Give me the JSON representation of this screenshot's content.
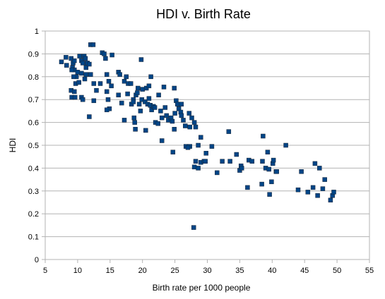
{
  "chart_data": {
    "type": "scatter",
    "title": "HDI v. Birth Rate",
    "xlabel": "Birth rate per 1000 people",
    "ylabel": "HDI",
    "xlim": [
      5,
      55
    ],
    "ylim": [
      0,
      1
    ],
    "xticks": [
      "5",
      "10",
      "15",
      "20",
      "25",
      "30",
      "35",
      "40",
      "45",
      "50",
      "55"
    ],
    "yticks": [
      "0",
      "0.1",
      "0.2",
      "0.3",
      "0.4",
      "0.5",
      "0.6",
      "0.7",
      "0.8",
      "0.9",
      "1"
    ],
    "grid": "horizontal",
    "legend": "none",
    "marker": "square",
    "marker_color": "#004586",
    "points": [
      [
        7.5,
        0.865
      ],
      [
        8.2,
        0.885
      ],
      [
        8.3,
        0.85
      ],
      [
        9.0,
        0.88
      ],
      [
        9.2,
        0.84
      ],
      [
        9.3,
        0.86
      ],
      [
        9.5,
        0.87
      ],
      [
        9.5,
        0.83
      ],
      [
        9.8,
        0.8
      ],
      [
        10.0,
        0.82
      ],
      [
        10.3,
        0.89
      ],
      [
        10.6,
        0.87
      ],
      [
        10.8,
        0.86
      ],
      [
        11.0,
        0.89
      ],
      [
        11.2,
        0.88
      ],
      [
        11.3,
        0.84
      ],
      [
        11.5,
        0.86
      ],
      [
        11.8,
        0.855
      ],
      [
        12.0,
        0.94
      ],
      [
        12.4,
        0.94
      ],
      [
        13.8,
        0.905
      ],
      [
        14.1,
        0.9
      ],
      [
        15.3,
        0.895
      ],
      [
        19.8,
        0.875
      ],
      [
        9.1,
        0.83
      ],
      [
        9.4,
        0.8
      ],
      [
        9.7,
        0.77
      ],
      [
        10.2,
        0.775
      ],
      [
        10.6,
        0.815
      ],
      [
        11.3,
        0.81
      ],
      [
        11.1,
        0.79
      ],
      [
        12.0,
        0.81
      ],
      [
        12.5,
        0.77
      ],
      [
        13.5,
        0.77
      ],
      [
        14.5,
        0.81
      ],
      [
        14.8,
        0.78
      ],
      [
        15.2,
        0.76
      ],
      [
        16.3,
        0.82
      ],
      [
        16.5,
        0.81
      ],
      [
        17.2,
        0.78
      ],
      [
        17.5,
        0.8
      ],
      [
        17.8,
        0.77
      ],
      [
        18.2,
        0.77
      ],
      [
        18.6,
        0.7
      ],
      [
        19.0,
        0.72
      ],
      [
        19.3,
        0.75
      ],
      [
        20.0,
        0.745
      ],
      [
        20.6,
        0.75
      ],
      [
        21.0,
        0.76
      ],
      [
        21.3,
        0.8
      ],
      [
        22.5,
        0.72
      ],
      [
        23.3,
        0.755
      ],
      [
        24.9,
        0.75
      ],
      [
        14.3,
        0.88
      ],
      [
        9.0,
        0.74
      ],
      [
        9.1,
        0.71
      ],
      [
        9.6,
        0.71
      ],
      [
        9.5,
        0.735
      ],
      [
        10.6,
        0.71
      ],
      [
        10.8,
        0.7
      ],
      [
        12.5,
        0.695
      ],
      [
        12.9,
        0.74
      ],
      [
        14.5,
        0.735
      ],
      [
        14.7,
        0.7
      ],
      [
        14.9,
        0.66
      ],
      [
        14.5,
        0.655
      ],
      [
        16.3,
        0.72
      ],
      [
        16.8,
        0.685
      ],
      [
        17.2,
        0.61
      ],
      [
        17.7,
        0.725
      ],
      [
        18.3,
        0.68
      ],
      [
        18.6,
        0.69
      ],
      [
        18.7,
        0.62
      ],
      [
        18.8,
        0.6
      ],
      [
        19.2,
        0.73
      ],
      [
        19.5,
        0.68
      ],
      [
        19.7,
        0.65
      ],
      [
        19.9,
        0.7
      ],
      [
        20.4,
        0.69
      ],
      [
        20.8,
        0.68
      ],
      [
        21.0,
        0.705
      ],
      [
        21.2,
        0.675
      ],
      [
        21.4,
        0.655
      ],
      [
        21.7,
        0.67
      ],
      [
        21.9,
        0.665
      ],
      [
        22.0,
        0.6
      ],
      [
        22.4,
        0.595
      ],
      [
        22.8,
        0.65
      ],
      [
        23.0,
        0.62
      ],
      [
        23.5,
        0.665
      ],
      [
        23.7,
        0.63
      ],
      [
        24.0,
        0.61
      ],
      [
        24.4,
        0.62
      ],
      [
        24.6,
        0.605
      ],
      [
        25.0,
        0.64
      ],
      [
        25.2,
        0.695
      ],
      [
        25.4,
        0.68
      ],
      [
        25.6,
        0.66
      ],
      [
        25.9,
        0.645
      ],
      [
        26.0,
        0.63
      ],
      [
        26.3,
        0.61
      ],
      [
        26.6,
        0.585
      ],
      [
        27.2,
        0.64
      ],
      [
        27.6,
        0.62
      ],
      [
        28.0,
        0.6
      ],
      [
        11.8,
        0.625
      ],
      [
        18.9,
        0.57
      ],
      [
        20.5,
        0.565
      ],
      [
        24.9,
        0.57
      ],
      [
        23.0,
        0.52
      ],
      [
        26.0,
        0.68
      ],
      [
        27.3,
        0.58
      ],
      [
        28.2,
        0.58
      ],
      [
        26.7,
        0.495
      ],
      [
        27.3,
        0.495
      ],
      [
        27.0,
        0.49
      ],
      [
        28.6,
        0.5
      ],
      [
        29.0,
        0.535
      ],
      [
        29.8,
        0.465
      ],
      [
        30.7,
        0.495
      ],
      [
        31.5,
        0.38
      ],
      [
        24.7,
        0.47
      ],
      [
        28.0,
        0.405
      ],
      [
        28.2,
        0.43
      ],
      [
        28.6,
        0.4
      ],
      [
        29.0,
        0.425
      ],
      [
        29.5,
        0.43
      ],
      [
        29.7,
        0.43
      ],
      [
        32.3,
        0.43
      ],
      [
        33.3,
        0.56
      ],
      [
        33.5,
        0.43
      ],
      [
        34.5,
        0.46
      ],
      [
        35.0,
        0.39
      ],
      [
        35.2,
        0.41
      ],
      [
        35.3,
        0.4
      ],
      [
        36.2,
        0.315
      ],
      [
        36.4,
        0.435
      ],
      [
        36.9,
        0.43
      ],
      [
        38.4,
        0.33
      ],
      [
        38.5,
        0.43
      ],
      [
        38.6,
        0.54
      ],
      [
        39.0,
        0.4
      ],
      [
        39.3,
        0.47
      ],
      [
        39.5,
        0.395
      ],
      [
        39.6,
        0.285
      ],
      [
        39.9,
        0.34
      ],
      [
        40.1,
        0.42
      ],
      [
        40.2,
        0.435
      ],
      [
        40.6,
        0.385
      ],
      [
        40.7,
        0.385
      ],
      [
        42.1,
        0.5
      ],
      [
        44.0,
        0.305
      ],
      [
        44.5,
        0.385
      ],
      [
        45.5,
        0.295
      ],
      [
        46.3,
        0.315
      ],
      [
        46.6,
        0.42
      ],
      [
        47.0,
        0.28
      ],
      [
        47.3,
        0.4
      ],
      [
        47.8,
        0.31
      ],
      [
        48.1,
        0.35
      ],
      [
        49.0,
        0.26
      ],
      [
        49.3,
        0.28
      ],
      [
        49.5,
        0.295
      ],
      [
        27.9,
        0.14
      ]
    ]
  }
}
